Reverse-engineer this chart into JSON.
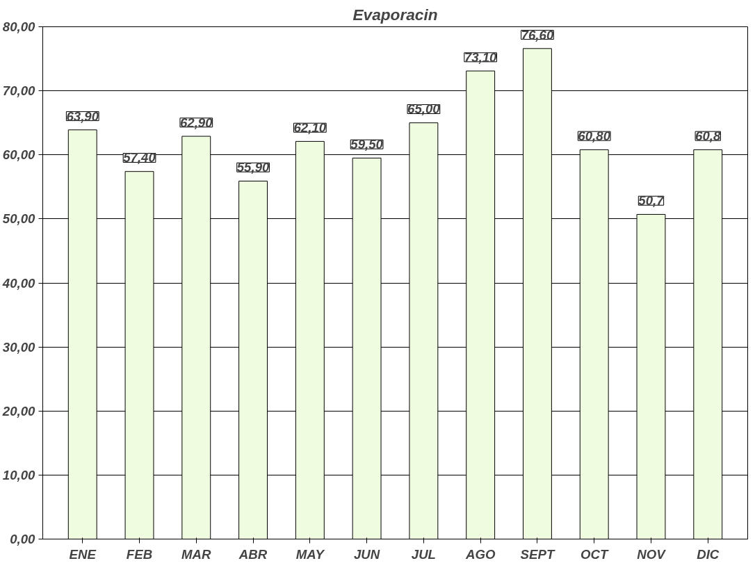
{
  "chart_data": {
    "type": "bar",
    "title": "Evaporacin",
    "categories": [
      "ENE",
      "FEB",
      "MAR",
      "ABR",
      "MAY",
      "JUN",
      "JUL",
      "AGO",
      "SEPT",
      "OCT",
      "NOV",
      "DIC"
    ],
    "values": [
      63.9,
      57.4,
      62.9,
      55.9,
      62.1,
      59.5,
      65.0,
      73.1,
      76.6,
      60.8,
      50.7,
      60.8
    ],
    "value_labels": [
      "63,90",
      "57,40",
      "62,90",
      "55,90",
      "62,10",
      "59,50",
      "65,00",
      "73,10",
      "76,60",
      "60,80",
      "50,7",
      "60,8"
    ],
    "color": "#f0fce0",
    "ylim": [
      0,
      80
    ],
    "yticks": [
      {
        "value": 0,
        "label": "0,00"
      },
      {
        "value": 10,
        "label": "10,00"
      },
      {
        "value": 20,
        "label": "20,00"
      },
      {
        "value": 30,
        "label": "30,00"
      },
      {
        "value": 40,
        "label": "40,00"
      },
      {
        "value": 50,
        "label": "50,00"
      },
      {
        "value": 60,
        "label": "60,00"
      },
      {
        "value": 70,
        "label": "70,00"
      },
      {
        "value": 80,
        "label": "80,00"
      }
    ],
    "grid": "y"
  }
}
